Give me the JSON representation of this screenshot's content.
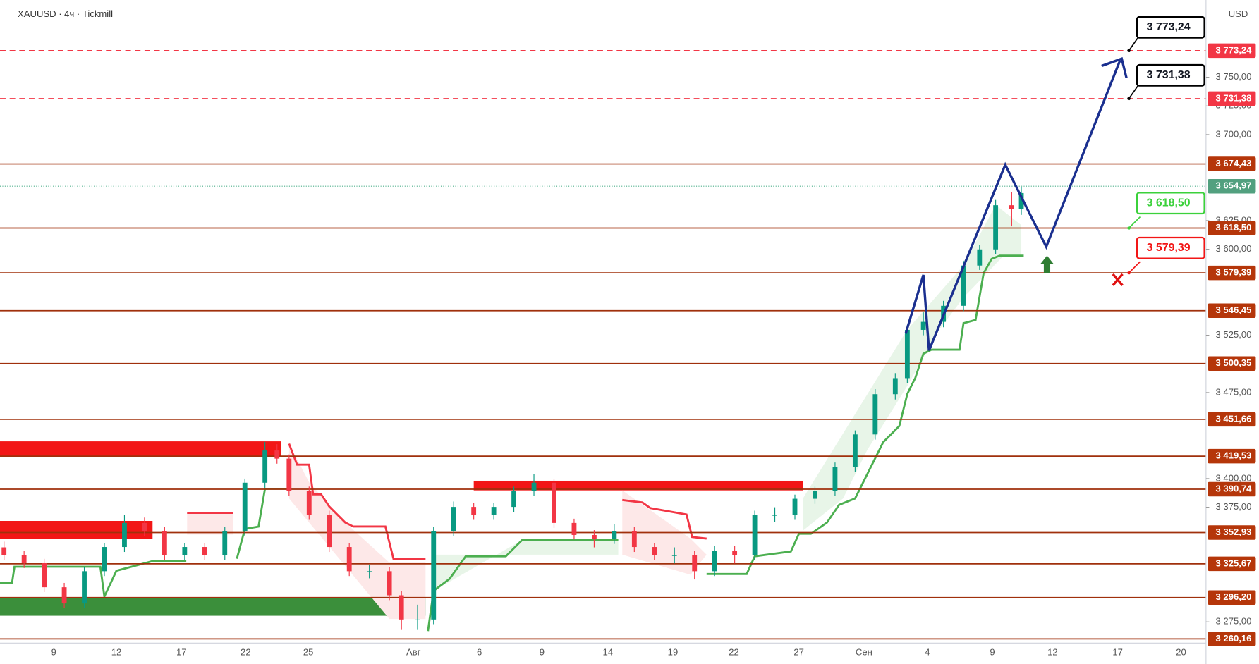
{
  "header": {
    "symbol": "XAUUSD · 4ч · Tickmill",
    "currency": "USD"
  },
  "chart_data": {
    "type": "candlestick",
    "ylim": [
      3256.5,
      3817.4
    ],
    "yticks": [
      {
        "value": 3750,
        "label": "3 750,00"
      },
      {
        "value": 3725,
        "label": "3 725,00"
      },
      {
        "value": 3700,
        "label": "3 700,00"
      },
      {
        "value": 3625,
        "label": "3 625,00"
      },
      {
        "value": 3600,
        "label": "3 600,00"
      },
      {
        "value": 3525,
        "label": "3 525,00"
      },
      {
        "value": 3475,
        "label": "3 475,00"
      },
      {
        "value": 3400,
        "label": "3 400,00"
      },
      {
        "value": 3375,
        "label": "3 375,00"
      },
      {
        "value": 3275,
        "label": "3 275,00"
      }
    ],
    "x_labels": [
      "9",
      "12",
      "17",
      "22",
      "25",
      "Авг",
      "6",
      "9",
      "14",
      "19",
      "22",
      "27",
      "Сен",
      "4",
      "9",
      "12",
      "17",
      "20"
    ],
    "levels": [
      {
        "value": 3674.43,
        "label": "3 674,43"
      },
      {
        "value": 3618.5,
        "label": "3 618,50"
      },
      {
        "value": 3579.39,
        "label": "3 579,39"
      },
      {
        "value": 3546.45,
        "label": "3 546,45"
      },
      {
        "value": 3500.35,
        "label": "3 500,35"
      },
      {
        "value": 3451.66,
        "label": "3 451,66"
      },
      {
        "value": 3419.53,
        "label": "3 419,53"
      },
      {
        "value": 3390.74,
        "label": "3 390,74"
      },
      {
        "value": 3352.93,
        "label": "3 352,93"
      },
      {
        "value": 3325.67,
        "label": "3 325,67"
      },
      {
        "value": 3296.2,
        "label": "3 296,20"
      },
      {
        "value": 3260.16,
        "label": "3 260,16"
      }
    ],
    "targets": [
      {
        "value": 3773.24,
        "label": "3 773,24"
      },
      {
        "value": 3731.38,
        "label": "3 731,38"
      }
    ],
    "current_price": {
      "value": 3654.97,
      "label": "3 654,97"
    },
    "take_profit": {
      "value": 3618.5,
      "label": "3 618,50"
    },
    "stop_loss": {
      "value": 3579.39,
      "label": "3 579,39"
    },
    "ohlc": [
      [
        3340,
        3345,
        3329,
        3333.2
      ],
      [
        3333.2,
        3337,
        3322,
        3326.2
      ],
      [
        3326.2,
        3330,
        3301,
        3305.2
      ],
      [
        3305.2,
        3309,
        3287,
        3291.1
      ],
      [
        3291.1,
        3323,
        3287,
        3319.2
      ],
      [
        3319.2,
        3344,
        3315,
        3340.3
      ],
      [
        3340.3,
        3368,
        3336,
        3361.3
      ],
      [
        3361.3,
        3366,
        3350,
        3354.3
      ],
      [
        3354.3,
        3358,
        3329,
        3333.2
      ],
      [
        3333.2,
        3344,
        3329,
        3340.3
      ],
      [
        3340.3,
        3344,
        3329,
        3333.2
      ],
      [
        3333.2,
        3358,
        3329,
        3354.3
      ],
      [
        3354.3,
        3400,
        3350,
        3396.4
      ],
      [
        3396.4,
        3432,
        3392,
        3424.5
      ],
      [
        3424.5,
        3430,
        3413,
        3417.4
      ],
      [
        3417.4,
        3421,
        3385,
        3389.4
      ],
      [
        3389.4,
        3393,
        3364,
        3368.3
      ],
      [
        3368.3,
        3372,
        3336,
        3340.3
      ],
      [
        3340.3,
        3344,
        3315,
        3319.2
      ],
      [
        3319.2,
        3325,
        3313,
        3319.2
      ],
      [
        3319.2,
        3323,
        3294,
        3298.2
      ],
      [
        3298.2,
        3302,
        3268,
        3277.1
      ],
      [
        3277.1,
        3290,
        3268,
        3277.1
      ],
      [
        3277.1,
        3358,
        3273,
        3354.3
      ],
      [
        3354.3,
        3380,
        3350,
        3375.3
      ],
      [
        3375.3,
        3379,
        3364,
        3368.3
      ],
      [
        3368.3,
        3379,
        3364,
        3375.3
      ],
      [
        3375.3,
        3393,
        3371,
        3389.4
      ],
      [
        3389.4,
        3404,
        3385,
        3396.4
      ],
      [
        3396.4,
        3400,
        3357,
        3361.3
      ],
      [
        3361.3,
        3365,
        3347,
        3350.8
      ],
      [
        3350.8,
        3355,
        3340,
        3347.3
      ],
      [
        3347.3,
        3360,
        3343,
        3354.3
      ],
      [
        3354.3,
        3358,
        3336,
        3340.3
      ],
      [
        3340.3,
        3344,
        3329,
        3333.2
      ],
      [
        3333.2,
        3340,
        3326,
        3333.2
      ],
      [
        3333.2,
        3337,
        3312,
        3319.2
      ],
      [
        3319.2,
        3341,
        3315,
        3336.8
      ],
      [
        3336.8,
        3341,
        3326,
        3333.2
      ],
      [
        3333.2,
        3372,
        3329,
        3368.3
      ],
      [
        3368.3,
        3375,
        3362,
        3368.3
      ],
      [
        3368.3,
        3386,
        3364,
        3382.4
      ],
      [
        3382.4,
        3393,
        3378,
        3389.4
      ],
      [
        3389.4,
        3414,
        3385,
        3410.4
      ],
      [
        3410.4,
        3442,
        3406,
        3438.5
      ],
      [
        3438.5,
        3478,
        3434,
        3473.6
      ],
      [
        3473.6,
        3492,
        3469,
        3487.6
      ],
      [
        3487.6,
        3534,
        3483,
        3529.7
      ],
      [
        3529.7,
        3545,
        3525,
        3536.7
      ],
      [
        3536.7,
        3555,
        3532,
        3550.7
      ],
      [
        3550.7,
        3590,
        3546,
        3585.8
      ],
      [
        3585.8,
        3604,
        3582,
        3599.9
      ],
      [
        3599.9,
        3643,
        3596,
        3638.4
      ],
      [
        3638.4,
        3650,
        3620,
        3634.9
      ],
      [
        3634.9,
        3654,
        3630,
        3649
      ]
    ]
  }
}
